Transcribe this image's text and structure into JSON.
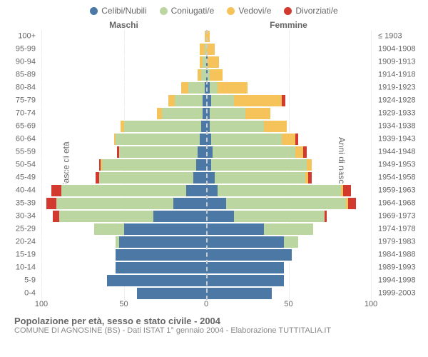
{
  "legend": [
    {
      "label": "Celibi/Nubili",
      "color": "#4b78a5"
    },
    {
      "label": "Coniugati/e",
      "color": "#bcd6a1"
    },
    {
      "label": "Vedovi/e",
      "color": "#f6c35a"
    },
    {
      "label": "Divorziati/e",
      "color": "#d33a2f"
    }
  ],
  "header_left": "Maschi",
  "header_right": "Femmine",
  "axis_left_title": "Fasce di età",
  "axis_right_title": "Anni di nascita",
  "x_max": 100,
  "x_ticks": [
    100,
    50,
    0,
    50,
    100
  ],
  "colors": {
    "cel": "#4b78a5",
    "con": "#bcd6a1",
    "ved": "#f6c35a",
    "div": "#d33a2f"
  },
  "grid_color": "#eeeeee",
  "zero_color": "#cccccc",
  "background": "#ffffff",
  "rows": [
    {
      "age": "0-4",
      "birth": "1999-2003",
      "m": {
        "cel": 42,
        "con": 0,
        "ved": 0,
        "div": 0
      },
      "f": {
        "cel": 40,
        "con": 0,
        "ved": 0,
        "div": 0
      }
    },
    {
      "age": "5-9",
      "birth": "1994-1998",
      "m": {
        "cel": 60,
        "con": 0,
        "ved": 0,
        "div": 0
      },
      "f": {
        "cel": 47,
        "con": 0,
        "ved": 0,
        "div": 0
      }
    },
    {
      "age": "10-14",
      "birth": "1989-1993",
      "m": {
        "cel": 55,
        "con": 0,
        "ved": 0,
        "div": 0
      },
      "f": {
        "cel": 47,
        "con": 0,
        "ved": 0,
        "div": 0
      }
    },
    {
      "age": "15-19",
      "birth": "1984-1988",
      "m": {
        "cel": 55,
        "con": 0,
        "ved": 0,
        "div": 0
      },
      "f": {
        "cel": 52,
        "con": 0,
        "ved": 0,
        "div": 0
      }
    },
    {
      "age": "20-24",
      "birth": "1979-1983",
      "m": {
        "cel": 53,
        "con": 2,
        "ved": 0,
        "div": 0
      },
      "f": {
        "cel": 47,
        "con": 9,
        "ved": 0,
        "div": 0
      }
    },
    {
      "age": "25-29",
      "birth": "1974-1978",
      "m": {
        "cel": 50,
        "con": 18,
        "ved": 0,
        "div": 0
      },
      "f": {
        "cel": 35,
        "con": 30,
        "ved": 0,
        "div": 0
      }
    },
    {
      "age": "30-34",
      "birth": "1969-1973",
      "m": {
        "cel": 32,
        "con": 57,
        "ved": 0,
        "div": 4
      },
      "f": {
        "cel": 17,
        "con": 55,
        "ved": 0,
        "div": 1
      }
    },
    {
      "age": "35-39",
      "birth": "1964-1968",
      "m": {
        "cel": 20,
        "con": 71,
        "ved": 0,
        "div": 6
      },
      "f": {
        "cel": 12,
        "con": 73,
        "ved": 1,
        "div": 5
      }
    },
    {
      "age": "40-44",
      "birth": "1959-1963",
      "m": {
        "cel": 12,
        "con": 76,
        "ved": 0,
        "div": 6
      },
      "f": {
        "cel": 7,
        "con": 75,
        "ved": 1,
        "div": 5
      }
    },
    {
      "age": "45-49",
      "birth": "1954-1958",
      "m": {
        "cel": 8,
        "con": 57,
        "ved": 0,
        "div": 2
      },
      "f": {
        "cel": 5,
        "con": 55,
        "ved": 2,
        "div": 2
      }
    },
    {
      "age": "50-54",
      "birth": "1949-1953",
      "m": {
        "cel": 6,
        "con": 57,
        "ved": 1,
        "div": 1
      },
      "f": {
        "cel": 3,
        "con": 58,
        "ved": 3,
        "div": 0
      }
    },
    {
      "age": "55-59",
      "birth": "1944-1948",
      "m": {
        "cel": 5,
        "con": 48,
        "ved": 0,
        "div": 1
      },
      "f": {
        "cel": 4,
        "con": 50,
        "ved": 5,
        "div": 2
      }
    },
    {
      "age": "60-64",
      "birth": "1939-1943",
      "m": {
        "cel": 4,
        "con": 51,
        "ved": 1,
        "div": 0
      },
      "f": {
        "cel": 3,
        "con": 43,
        "ved": 8,
        "div": 2
      }
    },
    {
      "age": "65-69",
      "birth": "1934-1938",
      "m": {
        "cel": 3,
        "con": 47,
        "ved": 2,
        "div": 0
      },
      "f": {
        "cel": 2,
        "con": 33,
        "ved": 14,
        "div": 0
      }
    },
    {
      "age": "70-74",
      "birth": "1929-1933",
      "m": {
        "cel": 2,
        "con": 25,
        "ved": 3,
        "div": 0
      },
      "f": {
        "cel": 2,
        "con": 22,
        "ved": 15,
        "div": 0
      }
    },
    {
      "age": "75-79",
      "birth": "1924-1928",
      "m": {
        "cel": 2,
        "con": 17,
        "ved": 4,
        "div": 0
      },
      "f": {
        "cel": 3,
        "con": 14,
        "ved": 29,
        "div": 2
      }
    },
    {
      "age": "80-84",
      "birth": "1919-1923",
      "m": {
        "cel": 1,
        "con": 10,
        "ved": 4,
        "div": 0
      },
      "f": {
        "cel": 2,
        "con": 5,
        "ved": 18,
        "div": 0
      }
    },
    {
      "age": "85-89",
      "birth": "1914-1918",
      "m": {
        "cel": 0,
        "con": 3,
        "ved": 2,
        "div": 0
      },
      "f": {
        "cel": 1,
        "con": 1,
        "ved": 8,
        "div": 0
      }
    },
    {
      "age": "90-94",
      "birth": "1909-1913",
      "m": {
        "cel": 0,
        "con": 2,
        "ved": 2,
        "div": 0
      },
      "f": {
        "cel": 1,
        "con": 0,
        "ved": 7,
        "div": 0
      }
    },
    {
      "age": "95-99",
      "birth": "1904-1908",
      "m": {
        "cel": 0,
        "con": 1,
        "ved": 3,
        "div": 0
      },
      "f": {
        "cel": 0,
        "con": 0,
        "ved": 5,
        "div": 0
      }
    },
    {
      "age": "100+",
      "birth": "≤ 1903",
      "m": {
        "cel": 0,
        "con": 0,
        "ved": 1,
        "div": 0
      },
      "f": {
        "cel": 0,
        "con": 0,
        "ved": 2,
        "div": 0
      }
    }
  ],
  "footer_title": "Popolazione per età, sesso e stato civile - 2004",
  "footer_sub": "COMUNE DI AGNOSINE (BS) - Dati ISTAT 1° gennaio 2004 - Elaborazione TUTTITALIA.IT"
}
